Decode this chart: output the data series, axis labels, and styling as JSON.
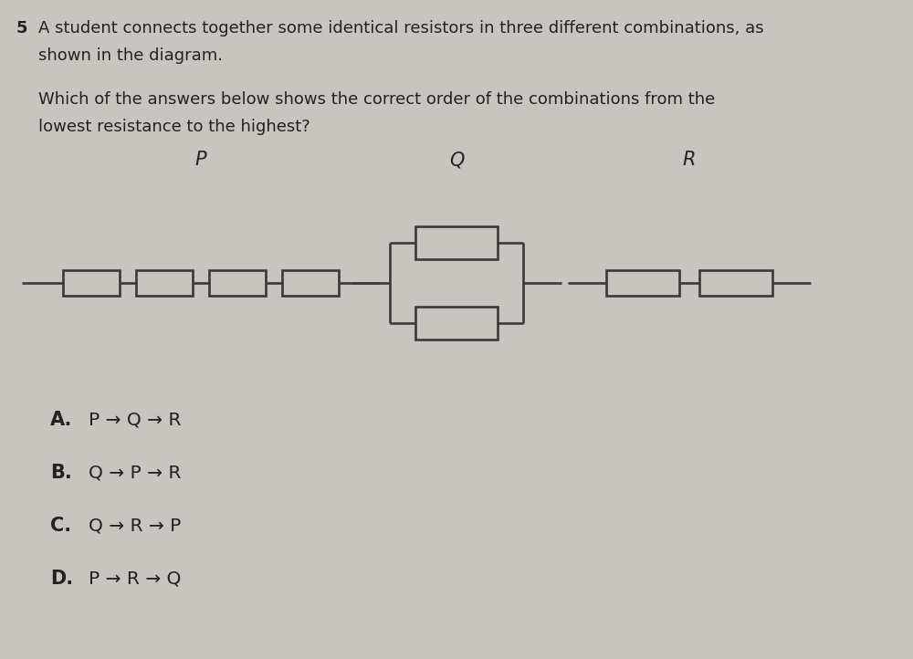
{
  "bg_color": "#c8c4c0",
  "text_color": "#222222",
  "question_number": "5",
  "line1": "A student connects together some identical resistors in three different combinations, as",
  "line2": "shown in the diagram.",
  "line3": "Which of the answers below shows the correct order of the combinations from the",
  "line4": "lowest resistance to the highest?",
  "label_P": "P",
  "label_Q": "Q",
  "label_R": "R",
  "answers": [
    {
      "label": "A.",
      "text": "P → Q → R"
    },
    {
      "label": "B.",
      "text": "Q → P → R"
    },
    {
      "label": "C.",
      "text": "Q → R → P"
    },
    {
      "label": "D.",
      "text": "P → R → Q"
    }
  ]
}
